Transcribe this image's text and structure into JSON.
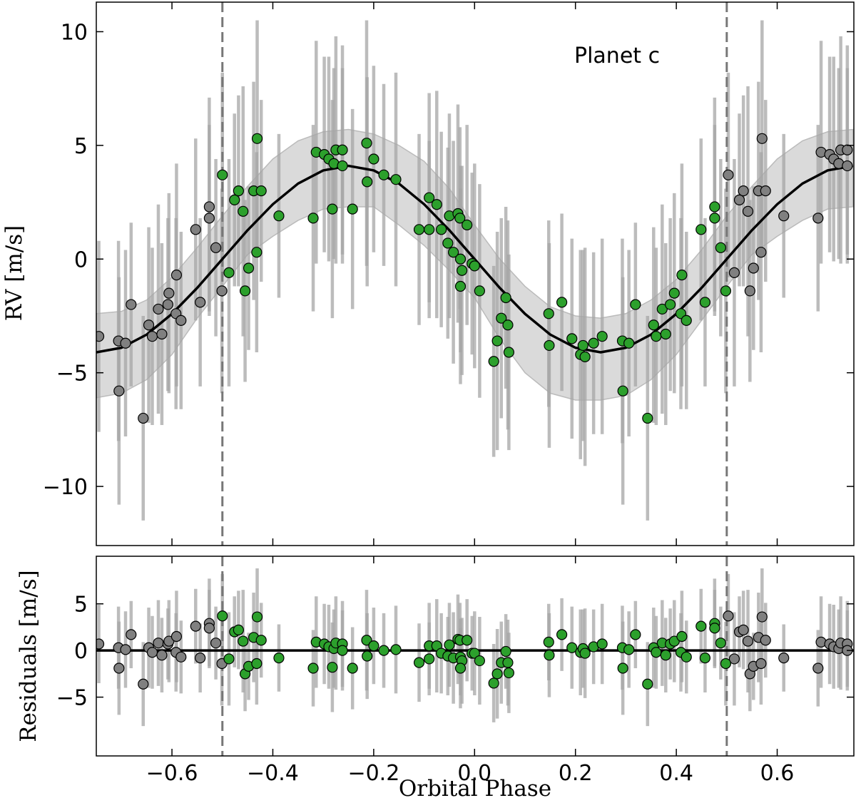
{
  "chart_data": [
    {
      "type": "scatter",
      "ylabel": "RV [m/s]",
      "annotation": "Planet c",
      "xlim": [
        -0.75,
        0.752
      ],
      "ylim": [
        -12.6,
        11.3
      ],
      "xticks": [
        -0.6,
        -0.4,
        -0.2,
        0.0,
        0.2,
        0.4,
        0.6
      ],
      "yticks": [
        {
          "value": -10,
          "label": "−10"
        },
        {
          "value": -5,
          "label": "−5"
        },
        0,
        5,
        10
      ],
      "vlines": [
        -0.5,
        0.5
      ],
      "vline_color": "#777777",
      "errorbar_color": "#a6a6a6",
      "edge_color": "#000000",
      "model": {
        "color": "#000000",
        "band_color": "#bbbbbb",
        "x": [
          -0.75,
          -0.7,
          -0.65,
          -0.6,
          -0.55,
          -0.5,
          -0.45,
          -0.4,
          -0.35,
          -0.3,
          -0.25,
          -0.2,
          -0.15,
          -0.1,
          -0.05,
          0.0,
          0.05,
          0.1,
          0.15,
          0.2,
          0.25,
          0.3,
          0.35,
          0.4,
          0.45,
          0.5,
          0.55,
          0.6,
          0.65,
          0.7,
          0.75
        ],
        "values": [
          -4.1,
          -3.9,
          -3.32,
          -2.41,
          -1.27,
          0,
          1.27,
          2.41,
          3.32,
          3.9,
          4.1,
          3.9,
          3.32,
          2.41,
          1.27,
          0,
          -1.27,
          -2.41,
          -3.32,
          -3.9,
          -4.1,
          -3.9,
          -3.32,
          -2.41,
          -1.27,
          0,
          1.27,
          2.41,
          3.32,
          3.9,
          4.1
        ],
        "upper": [
          -2.4,
          -2.3,
          -1.8,
          -0.8,
          0.5,
          1.9,
          3.2,
          4.4,
          5.2,
          5.6,
          5.7,
          5.5,
          5.0,
          4.3,
          3.1,
          1.5,
          0.0,
          -1.2,
          -2.1,
          -2.5,
          -2.6,
          -2.4,
          -1.8,
          -0.9,
          0.4,
          1.9,
          3.2,
          4.4,
          5.2,
          5.6,
          5.7
        ],
        "lower": [
          -6.1,
          -5.9,
          -5.3,
          -4.2,
          -2.6,
          -1.2,
          0.2,
          1.0,
          1.7,
          2.2,
          2.3,
          2.3,
          1.5,
          0.6,
          -0.5,
          -1.7,
          -3.5,
          -5.0,
          -5.9,
          -6.2,
          -6.2,
          -6.0,
          -5.3,
          -4.2,
          -2.7,
          -1.2,
          0.2,
          1.0,
          1.7,
          2.2,
          2.3
        ]
      },
      "series": [
        {
          "color": "#808080",
          "x": [
            -0.745,
            -0.706,
            -0.705,
            -0.692,
            -0.681,
            -0.657,
            -0.646,
            -0.639,
            -0.627,
            -0.62,
            -0.608,
            -0.606,
            -0.592,
            -0.591,
            -0.582,
            -0.553,
            -0.544,
            -0.526,
            -0.526,
            -0.513,
            -0.501,
            0.503,
            0.515,
            0.525,
            0.533,
            0.542,
            0.546,
            0.553,
            0.563,
            0.57,
            0.568,
            0.577,
            0.613,
            0.681,
            0.687,
            0.704,
            0.712,
            0.722,
            0.726,
            0.739,
            0.739
          ],
          "values": [
            -3.4,
            -3.6,
            -5.8,
            -3.7,
            -2.0,
            -7.0,
            -2.9,
            -3.4,
            -2.2,
            -3.3,
            -2.0,
            -1.5,
            -2.4,
            -0.7,
            -2.7,
            1.3,
            -1.9,
            2.3,
            1.8,
            0.5,
            -1.4,
            3.7,
            -0.6,
            2.6,
            3.0,
            2.1,
            -1.4,
            -0.4,
            3.0,
            5.3,
            0.3,
            3.0,
            1.9,
            1.8,
            4.7,
            4.6,
            4.4,
            4.2,
            4.8,
            4.8,
            4.1
          ],
          "errors": [
            4.2,
            4.4,
            5.0,
            4.1,
            3.6,
            4.5,
            4.3,
            3.9,
            4.6,
            4.0,
            3.8,
            4.4,
            4.2,
            4.9,
            3.9,
            4.0,
            3.7,
            4.8,
            4.1,
            3.9,
            4.5,
            4.5,
            5.0,
            3.8,
            4.2,
            5.5,
            4.0,
            3.6,
            4.8,
            5.2,
            4.4,
            4.0,
            3.6,
            4.1,
            4.9,
            4.3,
            4.5,
            4.2,
            5.0,
            4.6,
            4.3
          ]
        },
        {
          "color": "#2ca02c",
          "x": [
            -0.5,
            -0.487,
            -0.476,
            -0.468,
            -0.459,
            -0.455,
            -0.448,
            -0.438,
            -0.431,
            -0.432,
            -0.423,
            -0.388,
            -0.32,
            -0.314,
            -0.298,
            -0.289,
            -0.279,
            -0.275,
            -0.262,
            -0.262,
            -0.282,
            -0.242,
            -0.214,
            -0.213,
            -0.2,
            -0.18,
            -0.156,
            -0.11,
            -0.09,
            -0.09,
            -0.075,
            -0.066,
            -0.05,
            -0.033,
            -0.029,
            -0.015,
            -0.053,
            -0.042,
            -0.028,
            -0.025,
            -0.028,
            -0.005,
            0.0,
            0.01,
            0.038,
            0.045,
            0.053,
            0.062,
            0.066,
            0.068,
            0.147,
            0.148,
            0.173,
            0.193,
            0.21,
            0.215,
            0.219,
            0.236,
            0.253,
            0.293,
            0.294,
            0.306,
            0.319,
            0.343,
            0.355,
            0.36,
            0.372,
            0.379,
            0.388,
            0.396,
            0.409,
            0.411,
            0.42,
            0.457,
            0.449,
            0.476,
            0.476,
            0.488,
            0.498
          ],
          "values": [
            3.7,
            -0.6,
            2.6,
            3.0,
            2.1,
            -1.4,
            -0.4,
            3.0,
            5.3,
            0.3,
            3.0,
            1.9,
            1.8,
            4.7,
            4.6,
            4.4,
            4.2,
            4.8,
            4.8,
            4.1,
            2.2,
            2.2,
            5.1,
            3.4,
            4.4,
            3.7,
            3.5,
            1.3,
            1.3,
            2.7,
            2.4,
            1.3,
            1.9,
            2.0,
            1.8,
            1.5,
            0.7,
            0.3,
            0.0,
            -0.5,
            -1.2,
            -0.2,
            -0.3,
            -1.4,
            -4.5,
            -3.6,
            -2.6,
            -1.7,
            -2.9,
            -4.1,
            -2.4,
            -3.8,
            -1.9,
            -3.5,
            -4.2,
            -3.8,
            -4.3,
            -3.7,
            -3.4,
            -3.6,
            -5.8,
            -3.7,
            -2.0,
            -7.0,
            -2.9,
            -3.4,
            -2.2,
            -3.3,
            -2.0,
            -1.5,
            -2.4,
            -0.7,
            -2.7,
            -1.9,
            1.3,
            2.3,
            1.8,
            0.5,
            -1.4
          ],
          "errors": [
            4.5,
            5.0,
            3.8,
            4.2,
            5.5,
            4.0,
            3.6,
            4.8,
            5.2,
            4.4,
            4.0,
            3.6,
            4.1,
            4.9,
            4.3,
            4.5,
            4.2,
            5.0,
            4.6,
            4.3,
            4.8,
            4.4,
            5.4,
            4.6,
            4.1,
            4.0,
            4.7,
            4.2,
            3.9,
            4.6,
            5.0,
            4.3,
            4.5,
            4.8,
            4.0,
            4.4,
            4.2,
            4.9,
            4.1,
            4.6,
            4.3,
            4.0,
            4.5,
            4.7,
            4.2,
            4.8,
            4.4,
            4.0,
            4.6,
            4.3,
            4.1,
            4.5,
            3.9,
            4.4,
            4.6,
            4.2,
            4.8,
            4.0,
            4.3,
            4.5,
            5.0,
            4.1,
            3.6,
            4.5,
            4.3,
            3.9,
            4.6,
            4.0,
            3.8,
            4.4,
            4.2,
            4.9,
            3.9,
            3.7,
            4.0,
            4.8,
            4.1,
            3.9,
            4.5
          ]
        }
      ]
    },
    {
      "type": "residuals",
      "ylabel": "Residuals [m/s]",
      "xlabel": "Orbital Phase",
      "xlim": [
        -0.75,
        0.752
      ],
      "ylim": [
        -11.3,
        10.1
      ],
      "xticks": [
        {
          "value": -0.6,
          "label": "−0.6"
        },
        {
          "value": -0.4,
          "label": "−0.4"
        },
        {
          "value": -0.2,
          "label": "−0.2"
        },
        {
          "value": 0.0,
          "label": "0.0"
        },
        0.2,
        0.4,
        0.6
      ],
      "yticks": [
        {
          "value": -5,
          "label": "−5"
        },
        0,
        5
      ],
      "zero_line": 0,
      "series": [
        {
          "values": [
            0.7,
            0.3,
            -1.9,
            0.1,
            1.7,
            -3.6,
            0.3,
            -0.2,
            0.8,
            -0.5,
            0.7,
            1.0,
            -0.2,
            1.5,
            -0.7,
            2.6,
            -0.8,
            2.9,
            2.4,
            0.8,
            -1.4,
            3.7,
            -0.9,
            2.0,
            2.2,
            1.0,
            -2.5,
            -1.7,
            1.4,
            3.6,
            -1.4,
            1.1,
            -0.8,
            -1.9,
            0.9,
            0.7,
            0.4,
            0.2,
            0.8,
            0.7,
            0.0
          ]
        },
        {
          "values": [
            3.7,
            -0.9,
            2.0,
            2.2,
            1.0,
            -2.5,
            -1.7,
            1.4,
            3.6,
            -1.4,
            1.1,
            -0.8,
            -1.9,
            0.9,
            0.7,
            0.4,
            0.2,
            0.8,
            0.7,
            0.0,
            -1.8,
            -1.9,
            1.1,
            -0.6,
            0.5,
            0.0,
            0.1,
            -1.3,
            -0.9,
            0.5,
            0.5,
            -0.3,
            0.6,
            1.2,
            1.1,
            1.1,
            -0.6,
            -0.8,
            -0.7,
            -1.1,
            -1.9,
            -0.3,
            -0.3,
            -1.1,
            -3.5,
            -2.5,
            -1.3,
            -0.1,
            -1.3,
            -2.4,
            0.9,
            -0.5,
            1.7,
            0.3,
            -0.2,
            0.2,
            -0.3,
            0.4,
            0.7,
            0.3,
            -1.9,
            0.1,
            1.7,
            -3.6,
            0.3,
            -0.2,
            0.8,
            -0.5,
            0.7,
            1.0,
            -0.2,
            1.5,
            -0.7,
            -0.8,
            2.6,
            2.9,
            2.4,
            0.8,
            -1.4
          ]
        }
      ]
    }
  ]
}
